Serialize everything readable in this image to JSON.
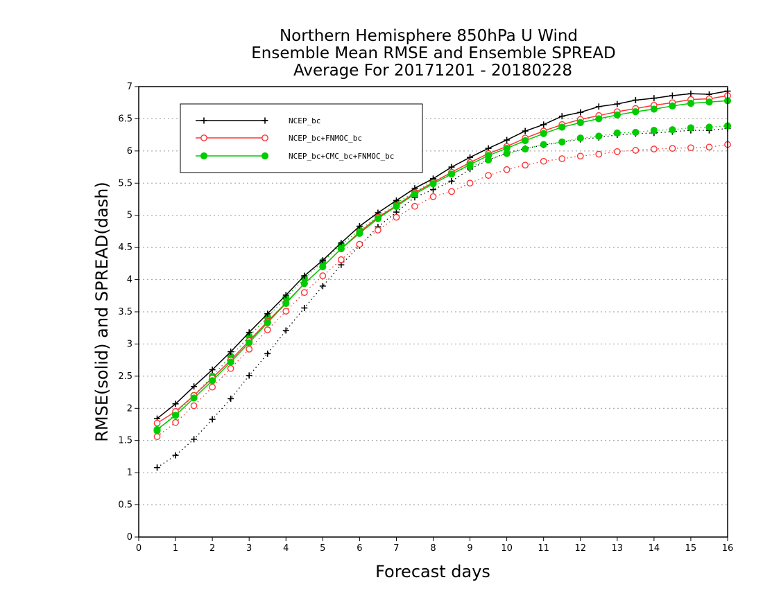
{
  "chart_data": {
    "type": "line",
    "title": [
      "Northern Hemisphere 850hPa U Wind",
      "Ensemble Mean RMSE and Ensemble SPREAD",
      "Average For 20171201 - 20180228"
    ],
    "xlabel": "Forecast days",
    "ylabel": "RMSE(solid) and SPREAD(dash)",
    "xlim": [
      0,
      16
    ],
    "ylim": [
      0,
      7
    ],
    "xticks": [
      0,
      1,
      2,
      3,
      4,
      5,
      6,
      7,
      8,
      9,
      10,
      11,
      12,
      13,
      14,
      15,
      16
    ],
    "yticks": [
      0,
      0.5,
      1,
      1.5,
      2,
      2.5,
      3,
      3.5,
      4,
      4.5,
      5,
      5.5,
      6,
      6.5,
      7
    ],
    "grid": "horizontal dotted",
    "legend_position": "top-left",
    "x": [
      0.5,
      1,
      1.5,
      2,
      2.5,
      3,
      3.5,
      4,
      4.5,
      5,
      5.5,
      6,
      6.5,
      7,
      7.5,
      8,
      8.5,
      9,
      9.5,
      10,
      10.5,
      11,
      11.5,
      12,
      12.5,
      13,
      13.5,
      14,
      14.5,
      15,
      15.5,
      16
    ],
    "series": [
      {
        "name": "NCEP_bc",
        "color": "#000000",
        "marker": "plus",
        "rmse": [
          1.84,
          2.07,
          2.34,
          2.6,
          2.88,
          3.18,
          3.47,
          3.76,
          4.06,
          4.3,
          4.57,
          4.83,
          5.04,
          5.23,
          5.42,
          5.57,
          5.75,
          5.9,
          6.04,
          6.17,
          6.31,
          6.41,
          6.54,
          6.6,
          6.69,
          6.73,
          6.79,
          6.82,
          6.86,
          6.89,
          6.88,
          6.93
        ],
        "spread": [
          1.08,
          1.27,
          1.52,
          1.83,
          2.15,
          2.51,
          2.85,
          3.21,
          3.56,
          3.9,
          4.23,
          4.53,
          4.82,
          5.05,
          5.28,
          5.4,
          5.53,
          5.72,
          5.86,
          5.97,
          6.04,
          6.09,
          6.14,
          6.18,
          6.21,
          6.25,
          6.27,
          6.28,
          6.3,
          6.32,
          6.32,
          6.35
        ]
      },
      {
        "name": "NCEP_bc+FNMOC_bc",
        "color": "#ff3333",
        "marker": "open-circle",
        "rmse": [
          1.77,
          1.95,
          2.2,
          2.47,
          2.75,
          3.05,
          3.35,
          3.64,
          3.94,
          4.2,
          4.48,
          4.74,
          4.97,
          5.15,
          5.35,
          5.51,
          5.67,
          5.82,
          5.96,
          6.07,
          6.2,
          6.31,
          6.41,
          6.49,
          6.55,
          6.61,
          6.66,
          6.71,
          6.75,
          6.8,
          6.81,
          6.86
        ],
        "spread": [
          1.56,
          1.78,
          2.04,
          2.33,
          2.62,
          2.92,
          3.22,
          3.51,
          3.8,
          4.06,
          4.31,
          4.55,
          4.77,
          4.97,
          5.14,
          5.29,
          5.37,
          5.5,
          5.62,
          5.71,
          5.78,
          5.84,
          5.88,
          5.92,
          5.95,
          5.99,
          6.01,
          6.03,
          6.04,
          6.05,
          6.06,
          6.1
        ]
      },
      {
        "name": "NCEP_bc+CMC_bc+FNMOC_bc",
        "color": "#00cc00",
        "marker": "filled-circle",
        "rmse": [
          1.67,
          1.89,
          2.16,
          2.43,
          2.72,
          3.02,
          3.33,
          3.63,
          3.94,
          4.2,
          4.48,
          4.72,
          4.95,
          5.14,
          5.33,
          5.49,
          5.64,
          5.79,
          5.93,
          6.04,
          6.16,
          6.27,
          6.37,
          6.44,
          6.5,
          6.56,
          6.61,
          6.65,
          6.7,
          6.74,
          6.76,
          6.78
        ],
        "spread": [
          1.65,
          1.92,
          2.2,
          2.5,
          2.81,
          3.12,
          3.42,
          3.72,
          4.02,
          4.28,
          4.54,
          4.77,
          4.98,
          5.19,
          5.36,
          5.53,
          5.65,
          5.76,
          5.86,
          5.96,
          6.03,
          6.1,
          6.14,
          6.2,
          6.23,
          6.28,
          6.29,
          6.32,
          6.33,
          6.36,
          6.37,
          6.39
        ]
      }
    ]
  }
}
